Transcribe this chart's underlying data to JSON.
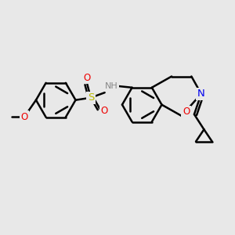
{
  "bg_color": "#e8e8e8",
  "bond_color": "#000000",
  "bond_width": 1.8,
  "atom_colors": {
    "N": "#0000ee",
    "O": "#ee0000",
    "S": "#bbbb00",
    "NH": "#888888",
    "C": "#000000"
  },
  "figsize": [
    3.0,
    3.0
  ],
  "dpi": 100
}
